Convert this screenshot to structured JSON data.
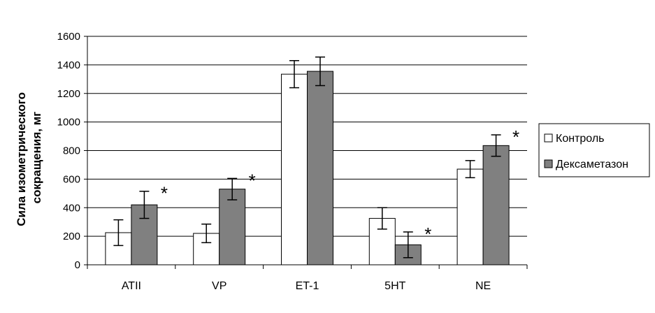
{
  "chart_data": {
    "type": "bar",
    "title": "",
    "xlabel": "",
    "ylabel_lines": [
      "Сила изометрического",
      "сокращения, мг"
    ],
    "categories": [
      "ATII",
      "VP",
      "ET-1",
      "5HT",
      "NE"
    ],
    "ylim": [
      0,
      1600
    ],
    "yticks": [
      0,
      200,
      400,
      600,
      800,
      1000,
      1200,
      1400,
      1600
    ],
    "grid": true,
    "legend_position": "right",
    "series": [
      {
        "name": "Контроль",
        "color": "#ffffff",
        "values": [
          225,
          220,
          1335,
          325,
          670
        ],
        "errors": [
          90,
          65,
          95,
          75,
          60
        ]
      },
      {
        "name": "Дексаметазон",
        "color": "#808080",
        "values": [
          420,
          530,
          1355,
          140,
          835
        ],
        "errors": [
          95,
          75,
          100,
          90,
          75
        ]
      }
    ],
    "significance_marker": "*",
    "significant": [
      true,
      true,
      false,
      true,
      true
    ]
  }
}
